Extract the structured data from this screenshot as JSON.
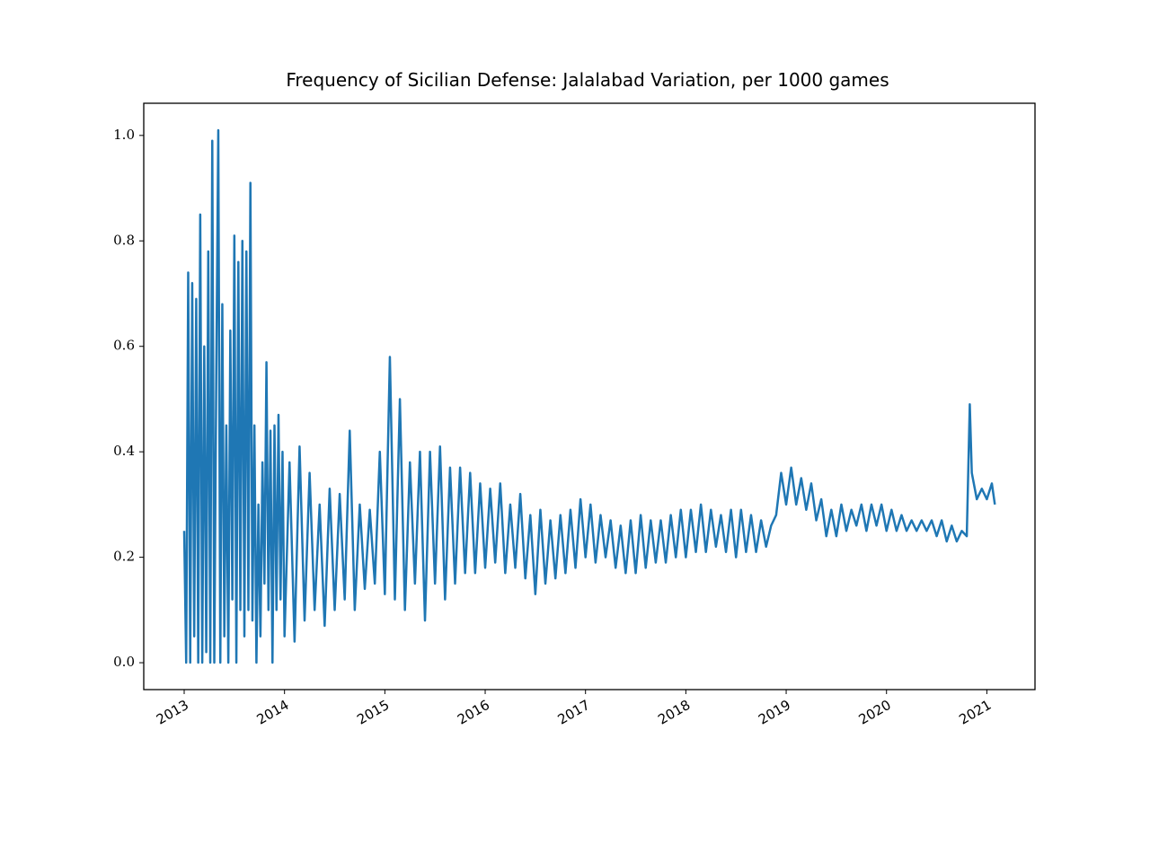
{
  "chart_data": {
    "type": "line",
    "title": "Frequency of Sicilian Defense: Jalalabad Variation, per 1000 games",
    "x": [
      2013.0,
      2013.02,
      2013.04,
      2013.06,
      2013.08,
      2013.1,
      2013.12,
      2013.14,
      2013.16,
      2013.18,
      2013.2,
      2013.22,
      2013.24,
      2013.26,
      2013.28,
      2013.3,
      2013.32,
      2013.34,
      2013.36,
      2013.38,
      2013.4,
      2013.42,
      2013.44,
      2013.46,
      2013.48,
      2013.5,
      2013.52,
      2013.54,
      2013.56,
      2013.58,
      2013.6,
      2013.62,
      2013.64,
      2013.66,
      2013.68,
      2013.7,
      2013.72,
      2013.74,
      2013.76,
      2013.78,
      2013.8,
      2013.82,
      2013.84,
      2013.86,
      2013.88,
      2013.9,
      2013.92,
      2013.94,
      2013.96,
      2013.98,
      2014.0,
      2014.05,
      2014.1,
      2014.15,
      2014.2,
      2014.25,
      2014.3,
      2014.35,
      2014.4,
      2014.45,
      2014.5,
      2014.55,
      2014.6,
      2014.65,
      2014.7,
      2014.75,
      2014.8,
      2014.85,
      2014.9,
      2014.95,
      2015.0,
      2015.05,
      2015.1,
      2015.15,
      2015.2,
      2015.25,
      2015.3,
      2015.35,
      2015.4,
      2015.45,
      2015.5,
      2015.55,
      2015.6,
      2015.65,
      2015.7,
      2015.75,
      2015.8,
      2015.85,
      2015.9,
      2015.95,
      2016.0,
      2016.05,
      2016.1,
      2016.15,
      2016.2,
      2016.25,
      2016.3,
      2016.35,
      2016.4,
      2016.45,
      2016.5,
      2016.55,
      2016.6,
      2016.65,
      2016.7,
      2016.75,
      2016.8,
      2016.85,
      2016.9,
      2016.95,
      2017.0,
      2017.05,
      2017.1,
      2017.15,
      2017.2,
      2017.25,
      2017.3,
      2017.35,
      2017.4,
      2017.45,
      2017.5,
      2017.55,
      2017.6,
      2017.65,
      2017.7,
      2017.75,
      2017.8,
      2017.85,
      2017.9,
      2017.95,
      2018.0,
      2018.05,
      2018.1,
      2018.15,
      2018.2,
      2018.25,
      2018.3,
      2018.35,
      2018.4,
      2018.45,
      2018.5,
      2018.55,
      2018.6,
      2018.65,
      2018.7,
      2018.75,
      2018.8,
      2018.85,
      2018.9,
      2018.95,
      2019.0,
      2019.05,
      2019.1,
      2019.15,
      2019.2,
      2019.25,
      2019.3,
      2019.35,
      2019.4,
      2019.45,
      2019.5,
      2019.55,
      2019.6,
      2019.65,
      2019.7,
      2019.75,
      2019.8,
      2019.85,
      2019.9,
      2019.95,
      2020.0,
      2020.05,
      2020.1,
      2020.15,
      2020.2,
      2020.25,
      2020.3,
      2020.35,
      2020.4,
      2020.45,
      2020.5,
      2020.55,
      2020.6,
      2020.65,
      2020.7,
      2020.75,
      2020.8,
      2020.83,
      2020.85,
      2020.9,
      2020.95,
      2021.0,
      2021.05,
      2021.08
    ],
    "series": [
      {
        "color": "#1f77b4",
        "values": [
          0.25,
          0,
          0.74,
          0,
          0.72,
          0.05,
          0.69,
          0,
          0.85,
          0,
          0.6,
          0.02,
          0.78,
          0,
          0.99,
          0,
          0.55,
          1.01,
          0,
          0.68,
          0.05,
          0.45,
          0,
          0.63,
          0.12,
          0.81,
          0,
          0.76,
          0.1,
          0.8,
          0.05,
          0.78,
          0.1,
          0.91,
          0.08,
          0.45,
          0,
          0.3,
          0.05,
          0.38,
          0.15,
          0.57,
          0.1,
          0.44,
          0,
          0.45,
          0.1,
          0.47,
          0.12,
          0.4,
          0.05,
          0.38,
          0.04,
          0.41,
          0.08,
          0.36,
          0.1,
          0.3,
          0.07,
          0.33,
          0.1,
          0.32,
          0.12,
          0.44,
          0.1,
          0.3,
          0.14,
          0.29,
          0.15,
          0.4,
          0.13,
          0.58,
          0.12,
          0.5,
          0.1,
          0.38,
          0.15,
          0.4,
          0.08,
          0.4,
          0.15,
          0.41,
          0.12,
          0.37,
          0.15,
          0.37,
          0.17,
          0.36,
          0.17,
          0.34,
          0.18,
          0.33,
          0.19,
          0.34,
          0.17,
          0.3,
          0.18,
          0.32,
          0.16,
          0.28,
          0.13,
          0.29,
          0.15,
          0.27,
          0.16,
          0.28,
          0.17,
          0.29,
          0.18,
          0.31,
          0.2,
          0.3,
          0.19,
          0.28,
          0.2,
          0.27,
          0.18,
          0.26,
          0.17,
          0.27,
          0.17,
          0.28,
          0.18,
          0.27,
          0.19,
          0.27,
          0.19,
          0.28,
          0.2,
          0.29,
          0.2,
          0.29,
          0.21,
          0.3,
          0.21,
          0.29,
          0.22,
          0.28,
          0.21,
          0.29,
          0.2,
          0.29,
          0.21,
          0.28,
          0.21,
          0.27,
          0.22,
          0.26,
          0.28,
          0.36,
          0.3,
          0.37,
          0.3,
          0.35,
          0.29,
          0.34,
          0.27,
          0.31,
          0.24,
          0.29,
          0.24,
          0.3,
          0.25,
          0.29,
          0.26,
          0.3,
          0.25,
          0.3,
          0.26,
          0.3,
          0.25,
          0.29,
          0.25,
          0.28,
          0.25,
          0.27,
          0.25,
          0.27,
          0.25,
          0.27,
          0.24,
          0.27,
          0.23,
          0.26,
          0.23,
          0.25,
          0.24,
          0.49,
          0.36,
          0.31,
          0.33,
          0.31,
          0.34,
          0.3
        ]
      }
    ],
    "xlim": [
      2012.597,
      2021.48
    ],
    "xticks": [
      2013,
      2014,
      2015,
      2016,
      2017,
      2018,
      2019,
      2020,
      2021
    ],
    "ylim": [
      -0.051,
      1.061
    ],
    "yticks": [
      {
        "value": 0,
        "label": "0.0"
      },
      0.2,
      0.4,
      0.6,
      0.8,
      {
        "value": 1,
        "label": "1.0"
      }
    ]
  }
}
